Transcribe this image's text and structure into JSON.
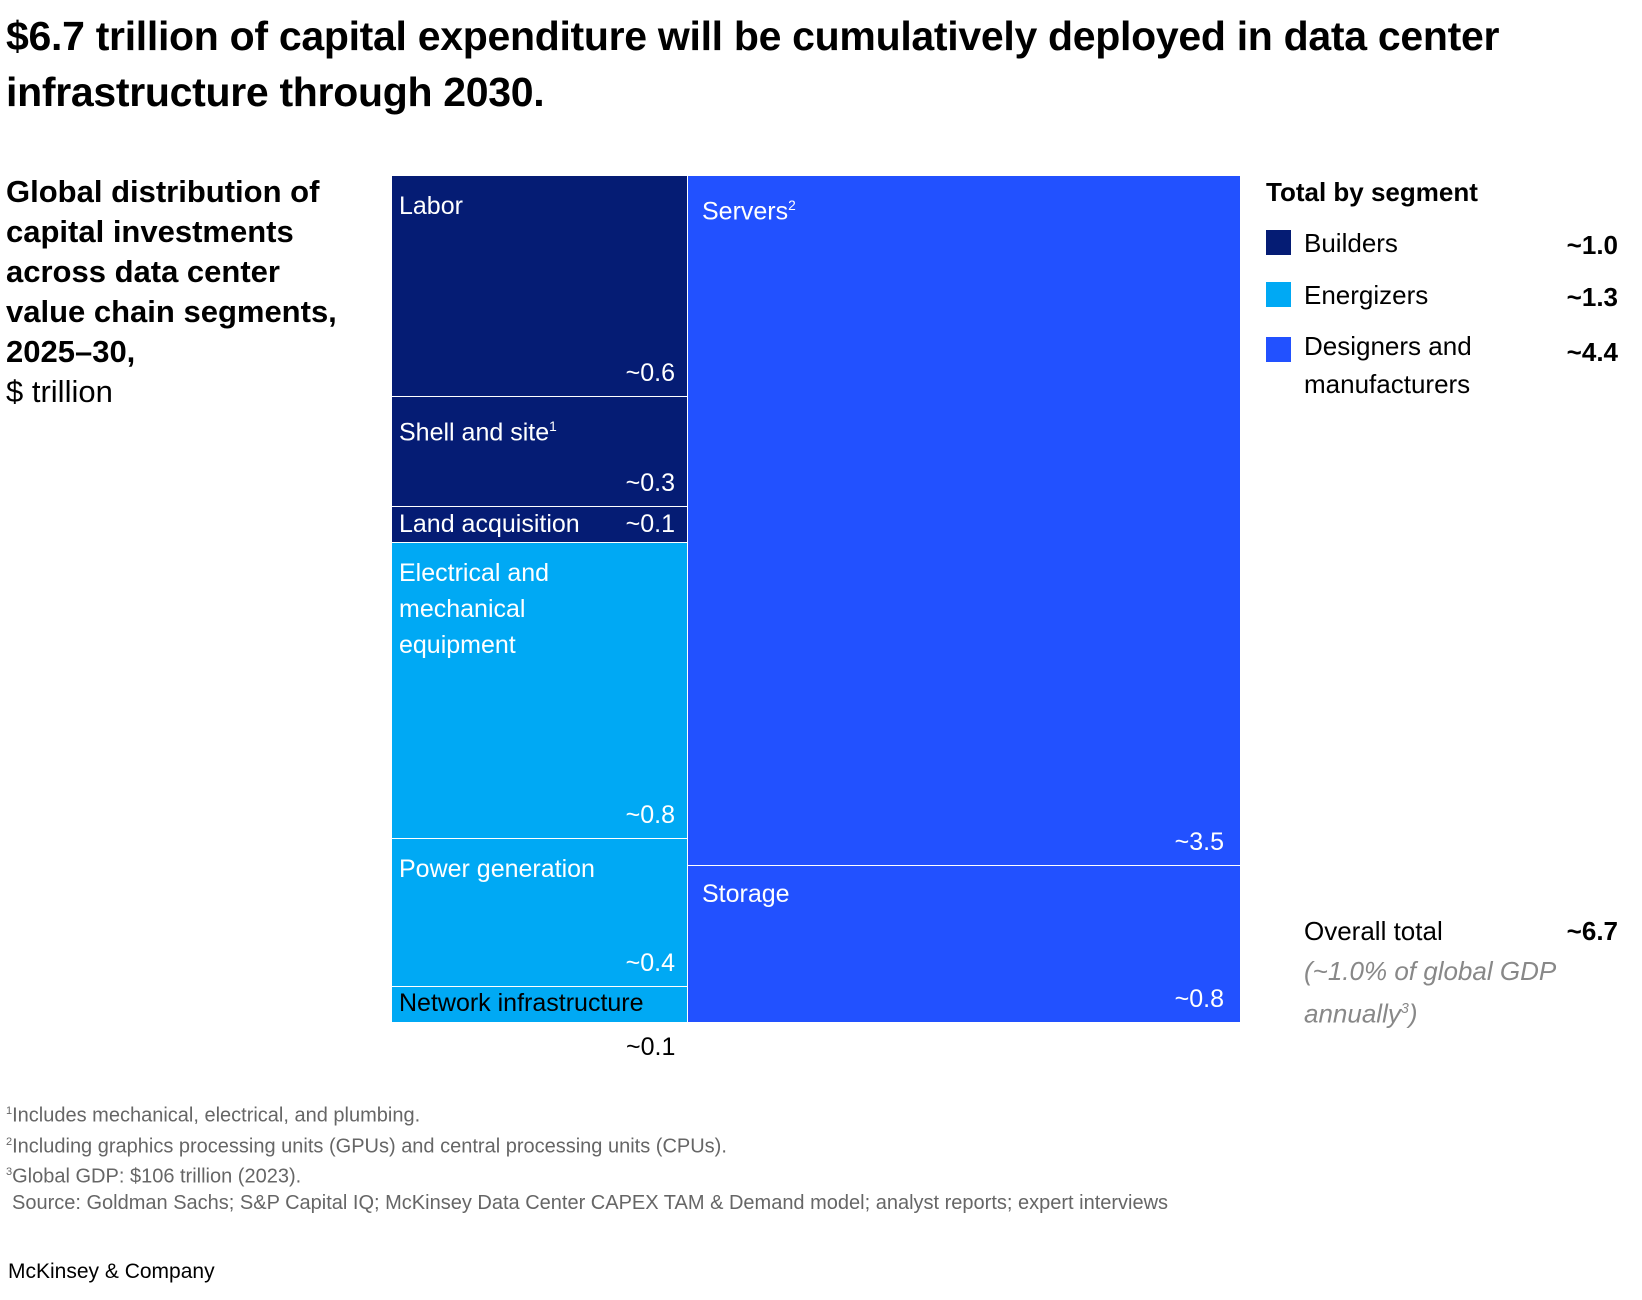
{
  "title": "$6.7 trillion of capital expenditure will be cumulatively deployed in data center infrastructure through 2030.",
  "subtitle_bold": "Global distribution of capital investments across data center value chain segments, 2025–30,",
  "subtitle_unit": "$ trillion",
  "chart_data": {
    "type": "treemap",
    "unit": "$ trillion",
    "items": [
      {
        "label": "Labor",
        "value": "~0.6",
        "segment": "Builders"
      },
      {
        "label": "Shell and site",
        "sup": "1",
        "value": "~0.3",
        "segment": "Builders"
      },
      {
        "label": "Land acquisition",
        "value": "~0.1",
        "segment": "Builders"
      },
      {
        "label": "Electrical and mechanical equipment",
        "value": "~0.8",
        "segment": "Energizers"
      },
      {
        "label": "Power generation",
        "value": "~0.4",
        "segment": "Energizers"
      },
      {
        "label": "Network infrastructure",
        "value": "~0.1",
        "segment": "Energizers"
      },
      {
        "label": "Servers",
        "sup": "2",
        "value": "~3.5",
        "segment": "Designers and manufacturers"
      },
      {
        "label": "Storage",
        "value": "~0.8",
        "segment": "Designers and manufacturers"
      }
    ],
    "legend": {
      "title": "Total by segment",
      "entries": [
        {
          "label": "Builders",
          "value": "~1.0",
          "color": "#051c74"
        },
        {
          "label": "Energizers",
          "value": "~1.3",
          "color": "#00a9f4"
        },
        {
          "label": "Designers and manufacturers",
          "value": "~4.4",
          "color": "#2251ff"
        }
      ]
    },
    "overall_label": "Overall total",
    "overall_value": "~6.7",
    "overall_note": "(~1.0% of global GDP annually",
    "overall_note_sup": "3",
    "overall_note_end": ")"
  },
  "footnotes": [
    {
      "sup": "1",
      "text": "Includes mechanical, electrical, and plumbing."
    },
    {
      "sup": "2",
      "text": "Including graphics processing units (GPUs) and central processing units (CPUs)."
    },
    {
      "sup": "3",
      "text": "Global GDP: $106 trillion (2023)."
    }
  ],
  "source": "Source: Goldman Sachs; S&P Capital IQ; McKinsey Data Center CAPEX TAM & Demand model; analyst reports; expert interviews",
  "brand": "McKinsey & Company"
}
